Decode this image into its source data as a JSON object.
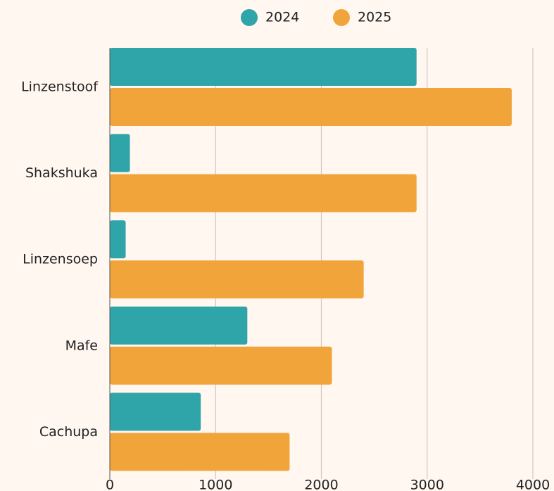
{
  "chart_data": {
    "type": "bar",
    "orientation": "horizontal",
    "categories": [
      "Linzenstoof",
      "Shakshuka",
      "Linzensoep",
      "Mafe",
      "Cachupa"
    ],
    "series": [
      {
        "name": "2024",
        "color": "#2fa4a9",
        "values": [
          2900,
          190,
          150,
          1300,
          860
        ]
      },
      {
        "name": "2025",
        "color": "#f0a43a",
        "values": [
          3800,
          2900,
          2400,
          2100,
          1700
        ]
      }
    ],
    "xlim": [
      0,
      4000
    ],
    "xticks": [
      0,
      1000,
      2000,
      3000,
      4000
    ],
    "grid": true,
    "legend": "top"
  }
}
